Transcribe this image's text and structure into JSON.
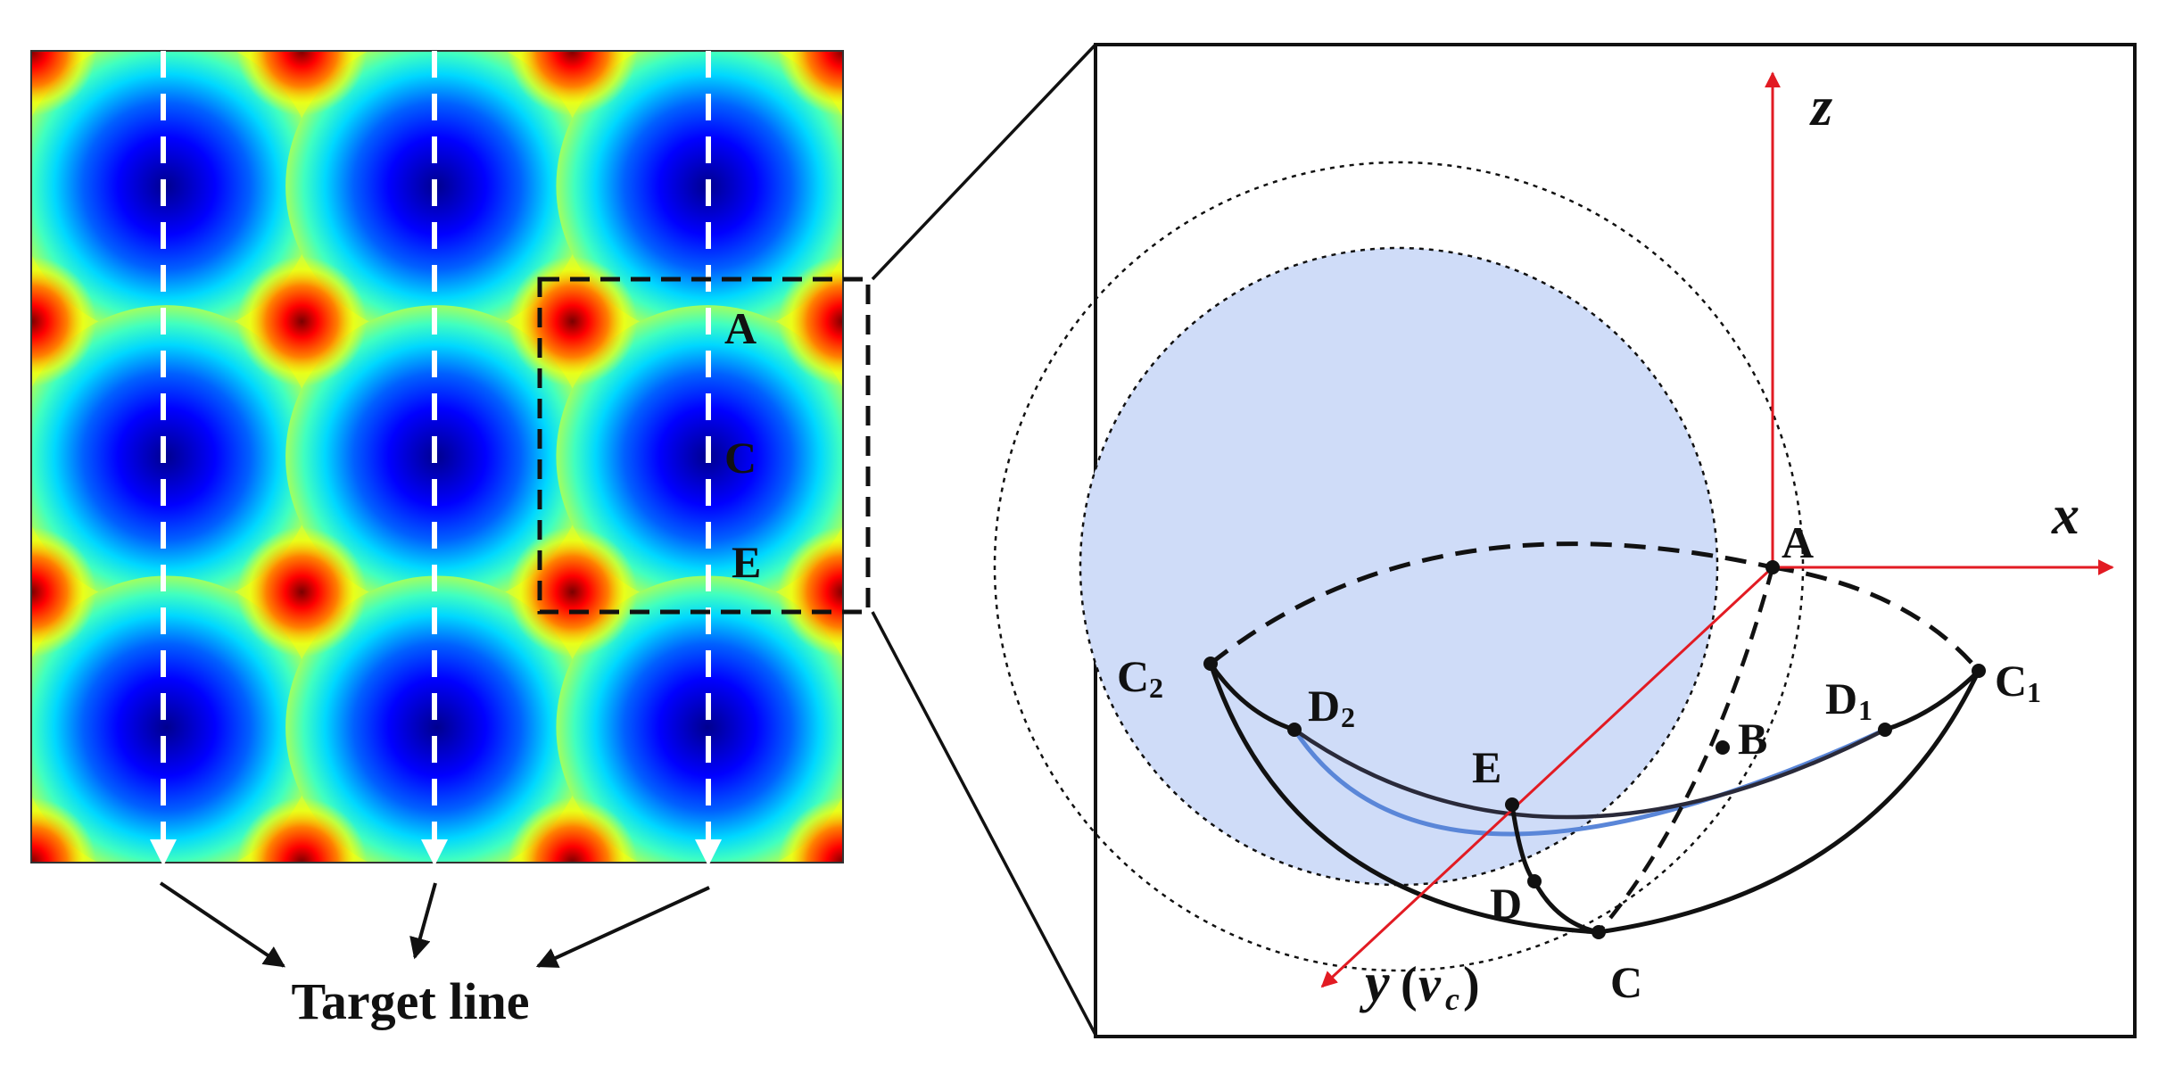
{
  "left_panel": {
    "grid_rows": 3,
    "grid_cols": 3,
    "colormap": [
      "#00008f",
      "#0000ff",
      "#00a0ff",
      "#00ffff",
      "#80ff80",
      "#ffff00",
      "#ff8000",
      "#ff0000",
      "#800000"
    ],
    "inset_labels": {
      "a": "A",
      "c": "C",
      "e": "E"
    },
    "target_line_label": "Target line"
  },
  "right_panel": {
    "axis_labels": {
      "z": "z",
      "x": "x",
      "y": "y",
      "y_paren_open": "(",
      "y_v": "v",
      "y_sub": "c",
      "y_paren_close": ")"
    },
    "points": {
      "A": "A",
      "B": "B",
      "C": "C",
      "C1": "C",
      "C1_sub": "1",
      "C2": "C",
      "C2_sub": "2",
      "D": "D",
      "D1": "D",
      "D1_sub": "1",
      "D2": "D",
      "D2_sub": "2",
      "E": "E"
    },
    "colors": {
      "axis": "#e21b23",
      "sphere_fill": "#cfdcf8",
      "lower_arc": "#5a86d8"
    }
  }
}
